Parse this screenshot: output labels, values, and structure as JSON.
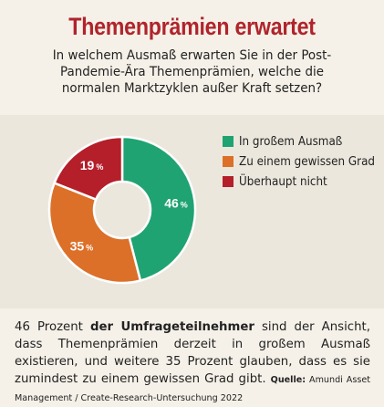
{
  "header": {
    "title": "Themenprämien erwartet",
    "question": "In welchem Ausmaß erwarten Sie in der Post-Pandemie-Ära Themenprämien, welche die normalen Marktzyklen außer Kraft setzen?"
  },
  "chart_data": {
    "type": "pie",
    "title": "Themenprämien erwartet",
    "slices": [
      {
        "label": "In großem Ausmaß",
        "value": 46,
        "display_value": "46",
        "unit": "%",
        "color": "#1fa372"
      },
      {
        "label": "Zu einem gewissen Grad",
        "value": 35,
        "display_value": "35",
        "unit": "%",
        "color": "#dc7028"
      },
      {
        "label": "Überhaupt nicht",
        "value": 19,
        "display_value": "19",
        "unit": "%",
        "color": "#b41f2a"
      }
    ],
    "legend_position": "right",
    "donut": true
  },
  "legend": {
    "items": [
      {
        "label": "In großem Ausmaß",
        "color": "#1fa372"
      },
      {
        "label": "Zu einem gewissen Grad",
        "color": "#dc7028"
      },
      {
        "label": "Überhaupt nicht",
        "color": "#b41f2a"
      }
    ]
  },
  "footer": {
    "text_lead": "46 Prozent ",
    "text_bold": "der Umfrageteilnehmer",
    "text_rest": " sind der Ansicht, dass Themenprämien derzeit in großem Ausmaß existieren, und weitere 35 Prozent glauben, dass es sie zumindest zu einem gewissen Grad gibt.",
    "source_label": "Quelle:",
    "source_text": "Amundi Asset Management / Create-Research-Untersuchung 2022"
  },
  "colors": {
    "background": "#f5f1e8",
    "chart_background": "#ebe7dd",
    "title": "#b0242c"
  }
}
